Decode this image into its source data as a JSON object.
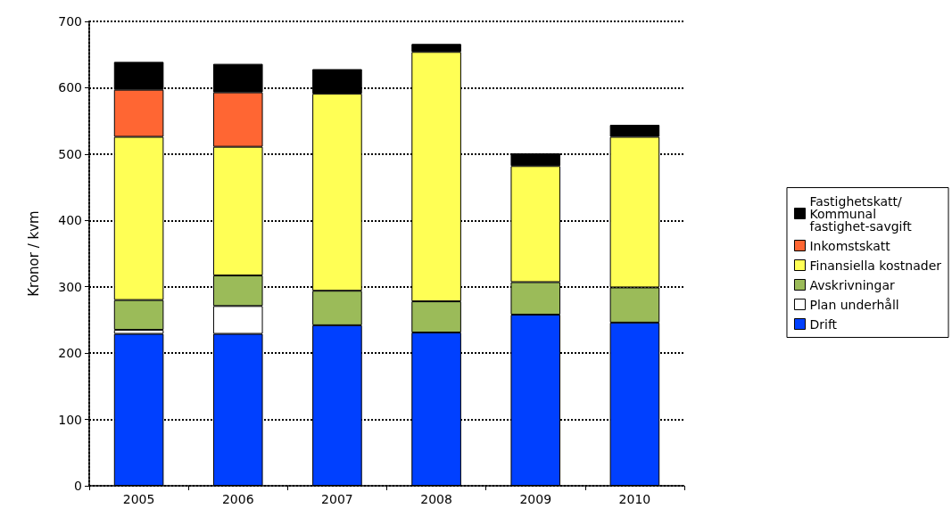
{
  "chart_data": {
    "type": "bar",
    "stacked": true,
    "ylabel": "Kronor / kvm",
    "categories": [
      "2005",
      "2006",
      "2007",
      "2008",
      "2009",
      "2010"
    ],
    "ylim": [
      0,
      700
    ],
    "yticks": [
      0,
      100,
      200,
      300,
      400,
      500,
      600,
      700
    ],
    "grid": "y",
    "legend": "right",
    "series": [
      {
        "name": "Drift",
        "color": "#0040ff",
        "values": [
          229,
          229,
          242,
          231,
          258,
          246
        ]
      },
      {
        "name": "Plan underhåll",
        "color": "#ffffff",
        "values": [
          6,
          42,
          null,
          null,
          null,
          null
        ]
      },
      {
        "name": "Avskrivningar",
        "color": "#9bbb59",
        "values": [
          45,
          46,
          52,
          47,
          49,
          53
        ]
      },
      {
        "name": "Finansiella kostnader",
        "color": "#ffff55",
        "values": [
          246,
          194,
          297,
          376,
          175,
          227
        ]
      },
      {
        "name": "Inkomstskatt",
        "color": "#ff6633",
        "values": [
          71,
          82,
          null,
          null,
          null,
          null
        ]
      },
      {
        "name": "Fastighetskatt/Kommunal fastighet-savgift",
        "color": "#000000",
        "values": [
          42,
          43,
          37,
          12,
          19,
          18
        ]
      }
    ]
  }
}
